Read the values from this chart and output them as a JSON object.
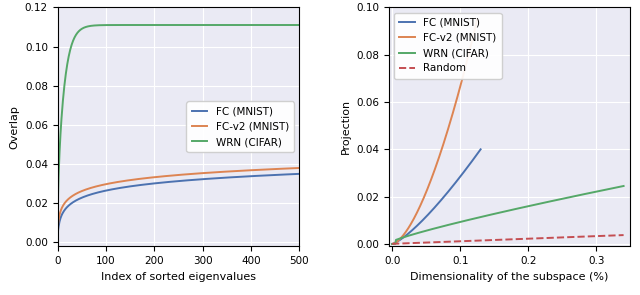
{
  "left": {
    "xlabel": "Index of sorted eigenvalues",
    "ylabel": "Overlap",
    "xlim": [
      0,
      500
    ],
    "ylim": [
      -0.002,
      0.12
    ],
    "yticks": [
      0.0,
      0.02,
      0.04,
      0.06,
      0.08,
      0.1,
      0.12
    ],
    "xticks": [
      0,
      100,
      200,
      300,
      400,
      500
    ],
    "legend_labels": [
      "FC (MNIST)",
      "FC-v2 (MNIST)",
      "WRN (CIFAR)"
    ],
    "legend_colors": [
      "#4c72b0",
      "#dd8452",
      "#55a868"
    ],
    "bg_color": "#eaeaf4"
  },
  "right": {
    "xlabel": "Dimensionality of the subspace (%)",
    "ylabel": "Projection",
    "xlim": [
      -0.005,
      0.35
    ],
    "ylim": [
      -0.001,
      0.1
    ],
    "yticks": [
      0.0,
      0.02,
      0.04,
      0.06,
      0.08,
      0.1
    ],
    "xticks": [
      0.0,
      0.1,
      0.2,
      0.3
    ],
    "legend_labels": [
      "FC (MNIST)",
      "FC-v2 (MNIST)",
      "WRN (CIFAR)",
      "Random"
    ],
    "legend_colors": [
      "#4c72b0",
      "#dd8452",
      "#55a868",
      "#c44e52"
    ],
    "bg_color": "#eaeaf4"
  }
}
